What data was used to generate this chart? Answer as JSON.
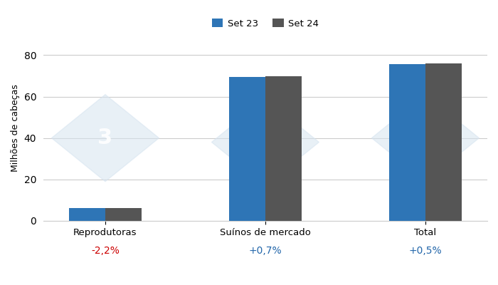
{
  "categories": [
    "Reprodutoras",
    "Suínos de mercado",
    "Total"
  ],
  "set23_values": [
    6.2,
    69.5,
    75.7
  ],
  "set24_values": [
    6.07,
    70.0,
    76.1
  ],
  "pct_changes": [
    "-2,2%",
    "+0,7%",
    "+0,5%"
  ],
  "pct_colors": [
    "#cc0000",
    "#2266aa",
    "#2266aa"
  ],
  "bar_color_23": "#2e75b6",
  "bar_color_24": "#555555",
  "ylabel": "Milhões de cabeças",
  "ylim": [
    0,
    90
  ],
  "yticks": [
    0,
    20,
    40,
    60,
    80
  ],
  "legend_labels": [
    "Set 23",
    "Set 24"
  ],
  "bg_color": "#ffffff",
  "grid_color": "#cccccc",
  "bar_width": 0.35,
  "watermark_color": "#d6e4f0"
}
